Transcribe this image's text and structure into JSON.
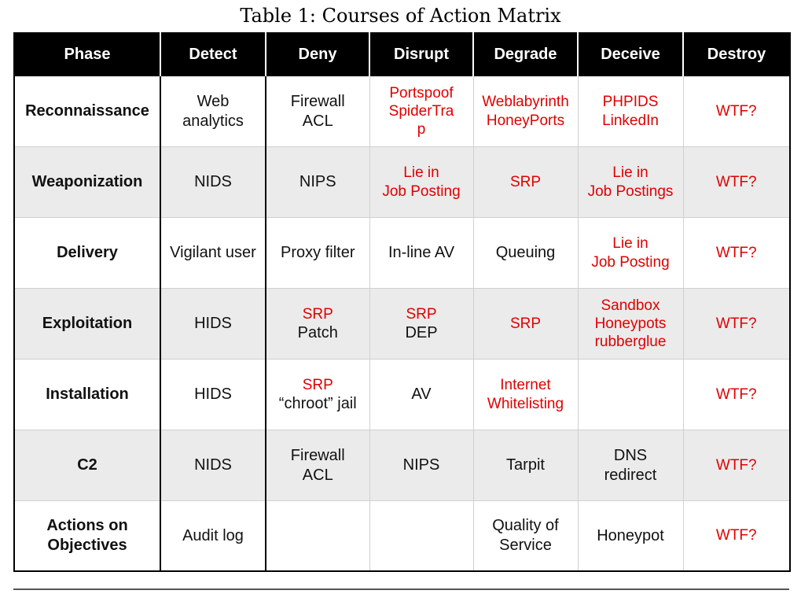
{
  "caption": "Table 1: Courses of Action Matrix",
  "columns": [
    "Phase",
    "Detect",
    "Deny",
    "Disrupt",
    "Degrade",
    "Deceive",
    "Destroy"
  ],
  "rows": [
    {
      "phase": [
        "Reconnaissance"
      ],
      "cells": [
        {
          "lines": [
            "Web",
            "analytics"
          ],
          "red": false
        },
        {
          "lines": [
            "Firewall",
            "ACL"
          ],
          "red": false
        },
        {
          "lines": [
            "Portspoof",
            "SpiderTra",
            "p"
          ],
          "red": true
        },
        {
          "lines": [
            "Weblabyrinth",
            "HoneyPorts"
          ],
          "red": true
        },
        {
          "lines": [
            "PHPIDS",
            "LinkedIn"
          ],
          "red": true
        },
        {
          "lines": [
            "WTF?"
          ],
          "red": true
        }
      ]
    },
    {
      "phase": [
        "Weaponization"
      ],
      "cells": [
        {
          "lines": [
            "NIDS"
          ],
          "red": false
        },
        {
          "lines": [
            "NIPS"
          ],
          "red": false
        },
        {
          "lines": [
            "Lie in",
            "Job Posting"
          ],
          "red": true
        },
        {
          "lines": [
            "SRP"
          ],
          "red": true
        },
        {
          "lines": [
            "Lie in",
            "Job Postings"
          ],
          "red": true
        },
        {
          "lines": [
            "WTF?"
          ],
          "red": true
        }
      ]
    },
    {
      "phase": [
        "Delivery"
      ],
      "cells": [
        {
          "lines": [
            "Vigilant user"
          ],
          "red": false
        },
        {
          "lines": [
            "Proxy filter"
          ],
          "red": false
        },
        {
          "lines": [
            "In-line AV"
          ],
          "red": false
        },
        {
          "lines": [
            "Queuing"
          ],
          "red": false
        },
        {
          "lines": [
            "Lie in",
            "Job Posting"
          ],
          "red": true
        },
        {
          "lines": [
            "WTF?"
          ],
          "red": true
        }
      ]
    },
    {
      "phase": [
        "Exploitation"
      ],
      "cells": [
        {
          "lines": [
            "HIDS"
          ],
          "red": false
        },
        {
          "lines": [
            {
              "t": "SRP",
              "red": true
            },
            {
              "t": "Patch",
              "red": false
            }
          ],
          "mixed": true
        },
        {
          "lines": [
            {
              "t": "SRP",
              "red": true
            },
            {
              "t": "DEP",
              "red": false
            }
          ],
          "mixed": true
        },
        {
          "lines": [
            "SRP"
          ],
          "red": true
        },
        {
          "lines": [
            "Sandbox",
            "Honeypots",
            "rubberglue"
          ],
          "red": true
        },
        {
          "lines": [
            "WTF?"
          ],
          "red": true
        }
      ]
    },
    {
      "phase": [
        "Installation"
      ],
      "cells": [
        {
          "lines": [
            "HIDS"
          ],
          "red": false
        },
        {
          "lines": [
            {
              "t": "SRP",
              "red": true
            },
            {
              "t": "“chroot” jail",
              "red": false
            }
          ],
          "mixed": true
        },
        {
          "lines": [
            "AV"
          ],
          "red": false
        },
        {
          "lines": [
            "Internet",
            "Whitelisting"
          ],
          "red": true
        },
        {
          "lines": [],
          "red": false
        },
        {
          "lines": [
            "WTF?"
          ],
          "red": true
        }
      ]
    },
    {
      "phase": [
        "C2"
      ],
      "cells": [
        {
          "lines": [
            "NIDS"
          ],
          "red": false
        },
        {
          "lines": [
            "Firewall",
            "ACL"
          ],
          "red": false
        },
        {
          "lines": [
            "NIPS"
          ],
          "red": false
        },
        {
          "lines": [
            "Tarpit"
          ],
          "red": false
        },
        {
          "lines": [
            "DNS",
            "redirect"
          ],
          "red": false
        },
        {
          "lines": [
            "WTF?"
          ],
          "red": true
        }
      ]
    },
    {
      "phase": [
        "Actions on",
        "Objectives"
      ],
      "cells": [
        {
          "lines": [
            "Audit log"
          ],
          "red": false
        },
        {
          "lines": [],
          "red": false
        },
        {
          "lines": [],
          "red": false
        },
        {
          "lines": [
            "Quality of",
            "Service"
          ],
          "red": false
        },
        {
          "lines": [
            "Honeypot"
          ],
          "red": false
        },
        {
          "lines": [
            "WTF?"
          ],
          "red": true
        }
      ]
    }
  ]
}
